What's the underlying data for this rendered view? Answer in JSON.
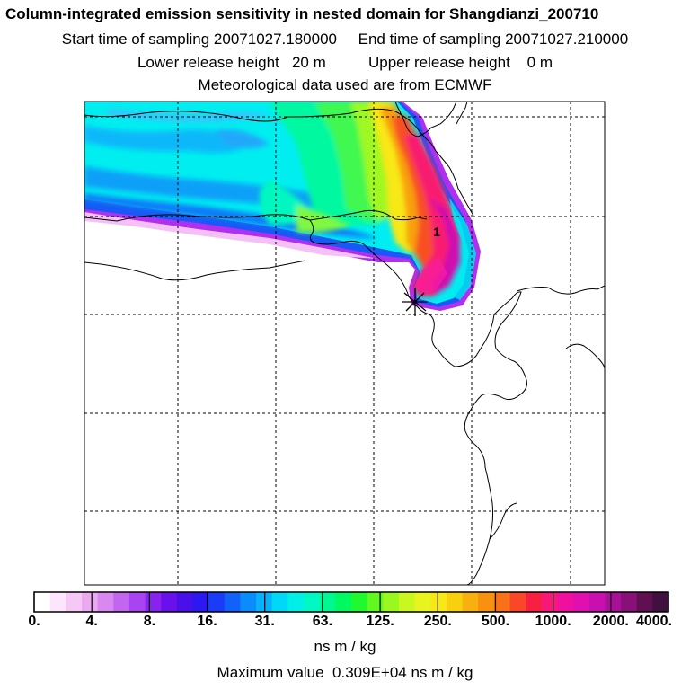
{
  "header": {
    "title": "Column-integrated emission sensitivity in nested domain for Shangdianzi_200710",
    "line2": "Start time of sampling 20071027.180000     End time of sampling 20071027.210000",
    "line3": "Lower release height   20 m          Upper release height    0 m",
    "line4": "Meteorological data used are from ECMWF"
  },
  "map": {
    "marker_label": "1",
    "receptor_symbol": "star-marker"
  },
  "colorbar": {
    "tick_labels": [
      "0.",
      "4.",
      "8.",
      "16.",
      "31.",
      "63.",
      "125.",
      "250.",
      "500.",
      "1000.",
      "2000.",
      "4000."
    ],
    "colors": [
      "#ffffff",
      "#fde6fd",
      "#f6c8f6",
      "#eaaaf0",
      "#d888ef",
      "#c266f0",
      "#a844f2",
      "#8a22ee",
      "#6a10ea",
      "#4a10ea",
      "#2c18f0",
      "#1a3cf6",
      "#1262fa",
      "#0a8cfb",
      "#06b2fb",
      "#00d8f8",
      "#00f0e8",
      "#00f8c4",
      "#00f890",
      "#00f860",
      "#20f830",
      "#60f820",
      "#98f820",
      "#c8f820",
      "#e8f420",
      "#f8e818",
      "#f8d010",
      "#f8b010",
      "#f89010",
      "#f87018",
      "#f84828",
      "#f82040",
      "#f81878",
      "#f010a0",
      "#e010b0",
      "#c810b0",
      "#a81098",
      "#881078",
      "#601050",
      "#401040"
    ],
    "units": "ns m / kg",
    "max_value_text": "Maximum value  0.309E+04 ns m / kg"
  }
}
